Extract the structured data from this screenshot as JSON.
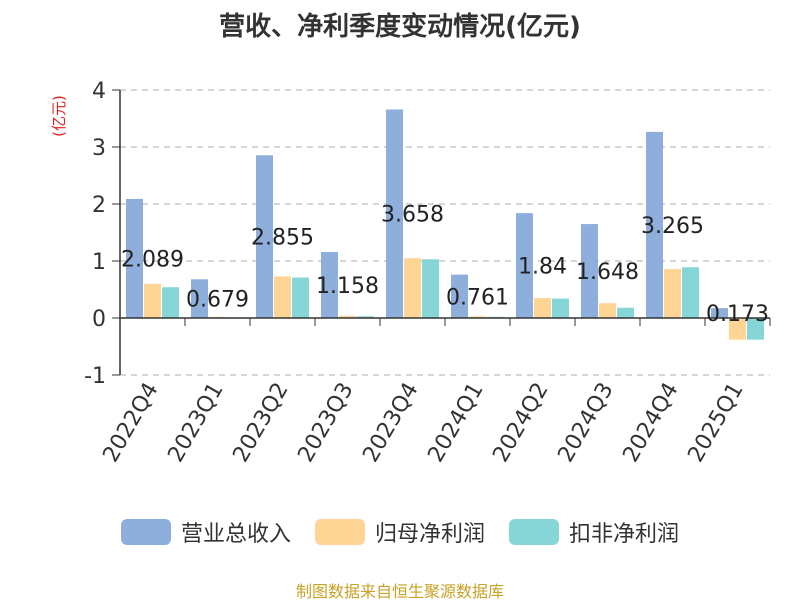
{
  "chart_data": {
    "type": "bar",
    "title": "营收、净利季度变动情况(亿元)",
    "ylabel": "(亿元)",
    "ylim": [
      -1,
      4
    ],
    "yticks": [
      "4",
      "3",
      "2",
      "1",
      "0",
      "-1"
    ],
    "categories": [
      "2022Q4",
      "2023Q1",
      "2023Q2",
      "2023Q3",
      "2023Q4",
      "2024Q1",
      "2024Q2",
      "2024Q3",
      "2024Q4",
      "2025Q1"
    ],
    "series": [
      {
        "name": "营业总收入",
        "color": "#8eaedc",
        "values": [
          2.089,
          0.679,
          2.855,
          1.158,
          3.658,
          0.761,
          1.84,
          1.648,
          3.265,
          0.173
        ]
      },
      {
        "name": "归母净利润",
        "color": "#ffd596",
        "values": [
          0.6,
          0.02,
          0.73,
          0.04,
          1.05,
          0.03,
          0.35,
          0.26,
          0.86,
          -0.38
        ]
      },
      {
        "name": "扣非净利润",
        "color": "#86d5d7",
        "values": [
          0.54,
          0.01,
          0.71,
          0.03,
          1.03,
          0.02,
          0.34,
          0.18,
          0.89,
          -0.38
        ]
      }
    ],
    "data_labels": [
      "2.089",
      "0.679",
      "2.855",
      "1.158",
      "3.658",
      "0.761",
      "1.84",
      "1.648",
      "3.265",
      "0.173"
    ],
    "grid": true,
    "legend_position": "bottom"
  },
  "source_note": "制图数据来自恒生聚源数据库"
}
